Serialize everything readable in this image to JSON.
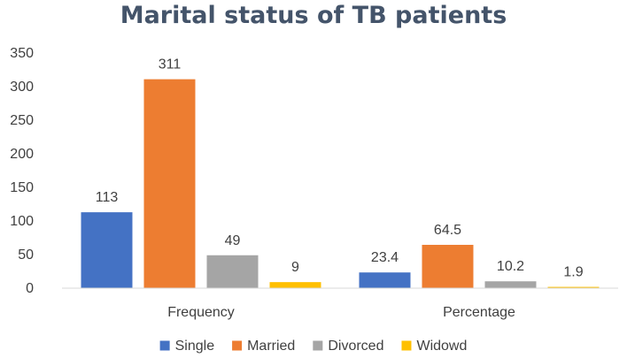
{
  "chart_data": {
    "type": "bar",
    "title": "Marital status of TB patients",
    "categories": [
      "Frequency",
      "Percentage"
    ],
    "series": [
      {
        "name": "Single",
        "color": "#4472c4",
        "values": [
          113,
          23.4
        ],
        "labels": [
          "113",
          "23.4"
        ]
      },
      {
        "name": "Married",
        "color": "#ed7d31",
        "values": [
          311,
          64.5
        ],
        "labels": [
          "311",
          "64.5"
        ]
      },
      {
        "name": "Divorced",
        "color": "#a5a5a5",
        "values": [
          49,
          10.2
        ],
        "labels": [
          "49",
          "10.2"
        ]
      },
      {
        "name": "Widowd",
        "color": "#ffc000",
        "values": [
          9,
          1.9
        ],
        "labels": [
          "9",
          "1.9"
        ]
      }
    ],
    "yticks": [
      "0",
      "50",
      "100",
      "150",
      "200",
      "250",
      "300",
      "350"
    ],
    "ylim": [
      0,
      350
    ],
    "grid": false,
    "legend": "bottom"
  }
}
